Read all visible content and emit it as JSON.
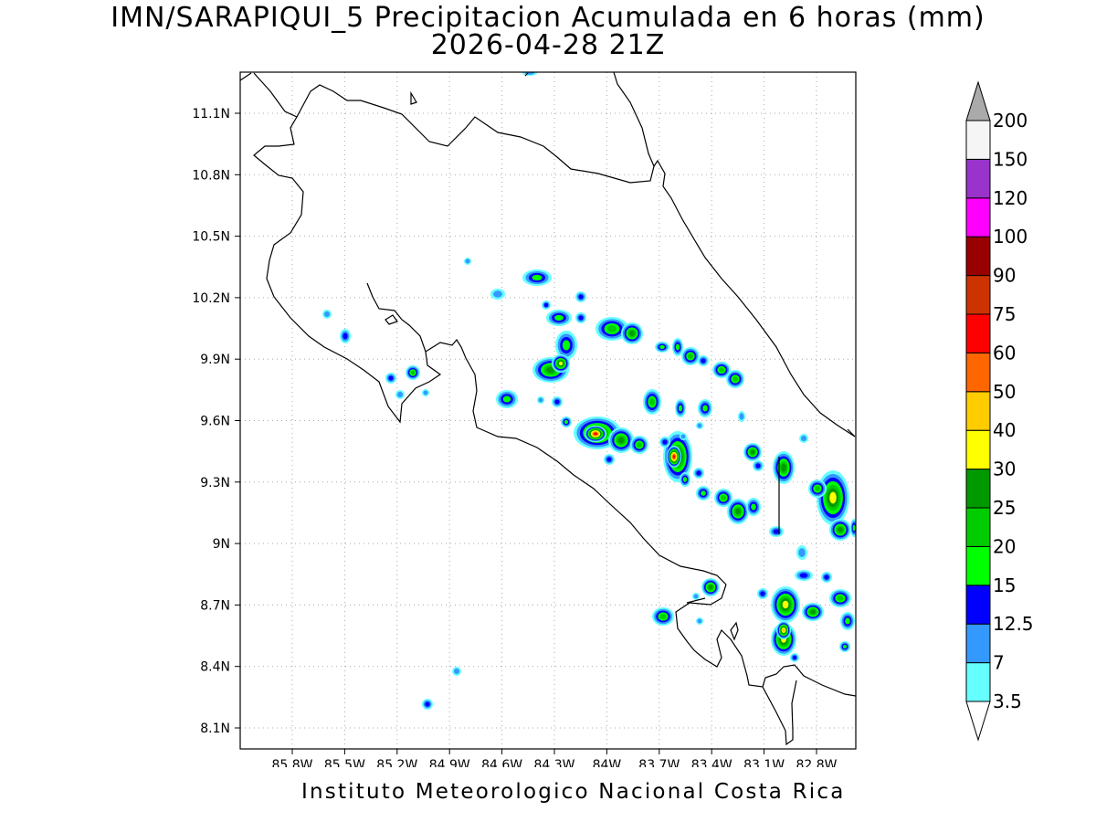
{
  "title": {
    "line1": "IMN/SARAPIQUI_5 Precipitacion Acumulada en 6 horas (mm)",
    "line2": "2026-04-28 21Z"
  },
  "footer": "Instituto Meteorologico Nacional Costa Rica",
  "map": {
    "lon_range": [
      -86.0,
      -83.0
    ],
    "lat_range": [
      8.0,
      11.3
    ],
    "lon_ticks": [
      "85.8W",
      "85.5W",
      "85.2W",
      "84.9W",
      "84.6W",
      "84.3W",
      "84W",
      "83.7W",
      "83.4W",
      "83.1W",
      "82.8W"
    ],
    "lat_ticks": [
      "11.1N",
      "10.8N",
      "10.5N",
      "10.2N",
      "9.9N",
      "9.6N",
      "9.3N",
      "9N",
      "8.7N",
      "8.4N",
      "8.1N"
    ],
    "grid": true
  },
  "colorbar": {
    "labels": [
      "3.5",
      "7",
      "12.5",
      "15",
      "20",
      "25",
      "30",
      "40",
      "50",
      "60",
      "75",
      "90",
      "100",
      "120",
      "150",
      "200"
    ],
    "colors": [
      "#66ffff",
      "#3399ff",
      "#0000ff",
      "#00ff00",
      "#00cc00",
      "#009900",
      "#ffff00",
      "#ffcc00",
      "#ff6600",
      "#ff0000",
      "#cc3300",
      "#990000",
      "#ff00ff",
      "#9933cc",
      "#f5f5f5"
    ],
    "top_triangle_color": "#aaaaaa",
    "bottom_triangle_color": "#ffffff"
  }
}
